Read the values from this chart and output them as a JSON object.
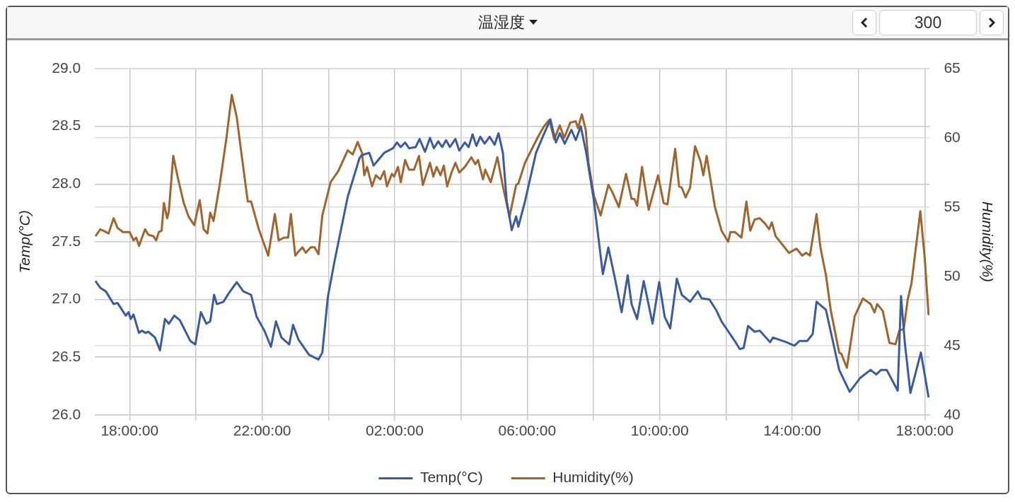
{
  "chart_data": {
    "type": "line",
    "title": "温湿度",
    "annotations": [
      "300"
    ],
    "ylabel": "Temp(°C)",
    "y2label": "Humidity(%)",
    "xlim": [
      "--01-01T16:57",
      "--01-02T18:09"
    ],
    "xticks": [
      {
        "value": "--01-01T18:00",
        "label": "18:00:00"
      },
      {
        "value": "--01-01T20:00",
        "label": null
      },
      {
        "value": "--01-01T22:00",
        "label": "22:00:00"
      },
      {
        "value": "--01-02T00:00",
        "label": null
      },
      {
        "value": "--01-02T02:00",
        "label": "02:00:00"
      },
      {
        "value": "--01-02T04:00",
        "label": null
      },
      {
        "value": "--01-02T06:00",
        "label": "06:00:00"
      },
      {
        "value": "--01-02T08:00",
        "label": null
      },
      {
        "value": "--01-02T10:00",
        "label": "10:00:00"
      },
      {
        "value": "--01-02T12:00",
        "label": null
      },
      {
        "value": "--01-02T14:00",
        "label": "14:00:00"
      },
      {
        "value": "--01-02T16:00",
        "label": null
      },
      {
        "value": "--01-02T18:00",
        "label": "18:00:00"
      }
    ],
    "ylim": [
      26,
      29
    ],
    "yticks": [
      {
        "value": 26,
        "label": "26.0"
      },
      {
        "value": 26.5,
        "label": "26.5"
      },
      {
        "value": 27,
        "label": "27.0"
      },
      {
        "value": 27.5,
        "label": "27.5"
      },
      {
        "value": 28,
        "label": "28.0"
      },
      {
        "value": 28.5,
        "label": "28.5"
      },
      {
        "value": 29,
        "label": "29.0"
      }
    ],
    "y2lim": [
      40,
      65
    ],
    "y2ticks": [
      40,
      45,
      50,
      55,
      60,
      65
    ],
    "grid": true,
    "legend": "bottom",
    "marker": "none",
    "line_style": "solid",
    "series": [
      {
        "name": "Temp(°C)",
        "color": "#3a5ba0",
        "x": [
          "--01-01T16:58",
          "--01-01T17:07",
          "--01-01T17:17",
          "--01-01T17:31",
          "--01-01T17:38",
          "--01-01T17:53",
          "--01-01T17:58",
          "--01-01T18:02",
          "--01-01T18:07",
          "--01-01T18:17",
          "--01-01T18:22",
          "--01-01T18:29",
          "--01-01T18:34",
          "--01-01T18:46",
          "--01-01T18:55",
          "--01-01T19:04",
          "--01-01T19:11",
          "--01-01T19:21",
          "--01-01T19:31",
          "--01-01T19:50",
          "--01-01T19:59",
          "--01-01T20:09",
          "--01-01T20:19",
          "--01-01T20:26",
          "--01-01T20:33",
          "--01-01T20:38",
          "--01-01T20:50",
          "--01-01T20:59",
          "--01-01T21:14",
          "--01-01T21:26",
          "--01-01T21:40",
          "--01-01T21:50",
          "--01-01T22:04",
          "--01-01T22:16",
          "--01-01T22:25",
          "--01-01T22:35",
          "--01-01T22:49",
          "--01-01T22:56",
          "--01-01T23:06",
          "--01-01T23:25",
          "--01-01T23:42",
          "--01-01T23:49",
          "--01-01T23:59",
          "--01-02T00:11",
          "--01-02T00:35",
          "--01-02T00:56",
          "--01-02T01:00",
          "--01-02T01:14",
          "--01-02T01:22",
          "--01-02T01:34",
          "--01-02T01:41",
          "--01-02T01:57",
          "--01-02T02:04",
          "--01-02T02:11",
          "--01-02T02:19",
          "--01-02T02:26",
          "--01-02T02:38",
          "--01-02T02:45",
          "--01-02T02:55",
          "--01-02T03:04",
          "--01-02T03:11",
          "--01-02T03:19",
          "--01-02T03:26",
          "--01-02T03:33",
          "--01-02T03:40",
          "--01-02T03:50",
          "--01-02T03:57",
          "--01-02T04:07",
          "--01-02T04:14",
          "--01-02T04:21",
          "--01-02T04:28",
          "--01-02T04:35",
          "--01-02T04:43",
          "--01-02T04:52",
          "--01-02T05:01",
          "--01-02T05:08",
          "--01-02T05:16",
          "--01-02T05:23",
          "--01-02T05:32",
          "--01-02T05:40",
          "--01-02T05:44",
          "--01-02T05:56",
          "--01-02T06:16",
          "--01-02T06:30",
          "--01-02T06:42",
          "--01-02T06:52",
          "--01-02T06:59",
          "--01-02T07:08",
          "--01-02T07:20",
          "--01-02T07:28",
          "--01-02T07:37",
          "--01-02T07:47",
          "--01-02T08:01",
          "--01-02T08:17",
          "--01-02T08:27",
          "--01-02T08:39",
          "--01-02T08:51",
          "--01-02T09:02",
          "--01-02T09:09",
          "--01-02T09:19",
          "--01-02T09:31",
          "--01-02T09:47",
          "--01-02T09:59",
          "--01-02T10:09",
          "--01-02T10:19",
          "--01-02T10:31",
          "--01-02T10:40",
          "--01-02T10:55",
          "--01-02T11:09",
          "--01-02T11:16",
          "--01-02T11:30",
          "--01-02T11:42",
          "--01-02T11:52",
          "--01-02T11:59",
          "--01-02T12:16",
          "--01-02T12:25",
          "--01-02T12:32",
          "--01-02T12:40",
          "--01-02T12:52",
          "--01-02T13:01",
          "--01-02T13:20",
          "--01-02T13:25",
          "--01-02T13:49",
          "--01-02T14:04",
          "--01-02T14:13",
          "--01-02T14:27",
          "--01-02T14:37",
          "--01-02T14:44",
          "--01-02T15:01",
          "--01-02T15:25",
          "--01-02T15:44",
          "--01-02T16:03",
          "--01-02T16:22",
          "--01-02T16:32",
          "--01-02T16:41",
          "--01-02T16:51",
          "--01-02T17:01",
          "--01-02T17:11",
          "--01-02T17:17",
          "--01-02T17:24",
          "--01-02T17:34",
          "--01-02T17:53",
          "--01-02T18:07"
        ],
        "values": [
          27.16,
          27.1,
          27.07,
          26.96,
          26.97,
          26.86,
          26.89,
          26.83,
          26.87,
          26.71,
          26.73,
          26.71,
          26.72,
          26.67,
          26.56,
          26.83,
          26.79,
          26.86,
          26.82,
          26.64,
          26.61,
          26.89,
          26.79,
          26.81,
          27.04,
          26.96,
          26.98,
          27.05,
          27.15,
          27.07,
          27.04,
          26.85,
          26.73,
          26.59,
          26.81,
          26.67,
          26.61,
          26.78,
          26.65,
          26.52,
          26.48,
          26.54,
          27.02,
          27.33,
          27.89,
          28.22,
          28.25,
          28.27,
          28.16,
          28.23,
          28.27,
          28.31,
          28.36,
          28.32,
          28.36,
          28.31,
          28.32,
          28.39,
          28.28,
          28.4,
          28.31,
          28.37,
          28.32,
          28.38,
          28.32,
          28.39,
          28.29,
          28.36,
          28.32,
          28.43,
          28.33,
          28.41,
          28.35,
          28.41,
          28.34,
          28.44,
          28.27,
          27.85,
          27.6,
          27.72,
          27.63,
          27.85,
          28.27,
          28.43,
          28.56,
          28.36,
          28.44,
          28.35,
          28.47,
          28.38,
          28.5,
          28.27,
          27.85,
          27.22,
          27.45,
          27.18,
          26.89,
          27.21,
          26.96,
          26.83,
          27.16,
          26.79,
          27.15,
          26.85,
          26.75,
          27.18,
          27.04,
          26.98,
          27.07,
          27.01,
          27.0,
          26.91,
          26.81,
          26.76,
          26.64,
          26.57,
          26.58,
          26.77,
          26.72,
          26.73,
          26.63,
          26.67,
          26.63,
          26.6,
          26.64,
          26.64,
          26.7,
          26.98,
          26.91,
          26.39,
          26.2,
          26.32,
          26.39,
          26.35,
          26.39,
          26.39,
          26.3,
          26.21,
          27.03,
          26.62,
          26.19,
          26.54,
          26.15
        ]
      },
      {
        "name": "Humidity(%)",
        "color": "#a0652e",
        "axis": "y2",
        "x": [
          "--01-01T16:58",
          "--01-01T17:07",
          "--01-01T17:17",
          "--01-01T17:22",
          "--01-01T17:31",
          "--01-01T17:38",
          "--01-01T17:48",
          "--01-01T18:00",
          "--01-01T18:07",
          "--01-01T18:12",
          "--01-01T18:17",
          "--01-01T18:28",
          "--01-01T18:34",
          "--01-01T18:43",
          "--01-01T18:48",
          "--01-01T18:53",
          "--01-01T18:58",
          "--01-01T19:02",
          "--01-01T19:08",
          "--01-01T19:11",
          "--01-01T19:19",
          "--01-01T19:28",
          "--01-01T19:38",
          "--01-01T19:47",
          "--01-01T19:57",
          "--01-01T20:07",
          "--01-01T20:14",
          "--01-01T20:21",
          "--01-01T20:26",
          "--01-01T20:32",
          "--01-01T20:43",
          "--01-01T20:55",
          "--01-01T21:05",
          "--01-01T21:14",
          "--01-01T21:23",
          "--01-01T21:34",
          "--01-01T21:40",
          "--01-01T21:54",
          "--01-01T22:11",
          "--01-01T22:23",
          "--01-01T22:30",
          "--01-01T22:40",
          "--01-01T22:47",
          "--01-01T22:52",
          "--01-01T23:00",
          "--01-01T23:06",
          "--01-01T23:13",
          "--01-01T23:19",
          "--01-01T23:28",
          "--01-01T23:35",
          "--01-01T23:42",
          "--01-01T23:49",
          "--01-02T00:04",
          "--01-02T00:18",
          "--01-02T00:35",
          "--01-02T00:44",
          "--01-02T00:53",
          "--01-02T01:01",
          "--01-02T01:05",
          "--01-02T01:10",
          "--01-02T01:19",
          "--01-02T01:26",
          "--01-02T01:34",
          "--01-02T01:41",
          "--01-02T01:46",
          "--01-02T01:55",
          "--01-02T01:59",
          "--01-02T02:06",
          "--01-02T02:11",
          "--01-02T02:19",
          "--01-02T02:26",
          "--01-02T02:35",
          "--01-02T02:44",
          "--01-02T02:51",
          "--01-02T03:04",
          "--01-02T03:10",
          "--01-02T03:16",
          "--01-02T03:23",
          "--01-02T03:29",
          "--01-02T03:35",
          "--01-02T03:43",
          "--01-02T03:50",
          "--01-02T03:57",
          "--01-02T04:07",
          "--01-02T04:19",
          "--01-02T04:26",
          "--01-02T04:31",
          "--01-02T04:40",
          "--01-02T04:44",
          "--01-02T04:54",
          "--01-02T05:06",
          "--01-02T05:16",
          "--01-02T05:28",
          "--01-02T05:40",
          "--01-02T05:44",
          "--01-02T05:56",
          "--01-02T06:11",
          "--01-02T06:20",
          "--01-02T06:30",
          "--01-02T06:40",
          "--01-02T06:49",
          "--01-02T06:59",
          "--01-02T07:07",
          "--01-02T07:18",
          "--01-02T07:28",
          "--01-02T07:32",
          "--01-02T07:39",
          "--01-02T07:46",
          "--01-02T07:51",
          "--01-02T08:01",
          "--01-02T08:13",
          "--01-02T08:27",
          "--01-02T08:34",
          "--01-02T08:46",
          "--01-02T08:59",
          "--01-02T09:09",
          "--01-02T09:14",
          "--01-02T09:19",
          "--01-02T09:28",
          "--01-02T09:40",
          "--01-02T09:57",
          "--01-02T10:07",
          "--01-02T10:14",
          "--01-02T10:28",
          "--01-02T10:35",
          "--01-02T10:40",
          "--01-02T10:47",
          "--01-02T10:55",
          "--01-02T11:04",
          "--01-02T11:14",
          "--01-02T11:19",
          "--01-02T11:25",
          "--01-02T11:40",
          "--01-02T11:52",
          "--01-02T12:04",
          "--01-02T12:08",
          "--01-02T12:16",
          "--01-02T12:28",
          "--01-02T12:37",
          "--01-02T12:44",
          "--01-02T12:52",
          "--01-02T13:01",
          "--01-02T13:11",
          "--01-02T13:18",
          "--01-02T13:23",
          "--01-02T13:30",
          "--01-02T13:44",
          "--01-02T13:54",
          "--01-02T14:08",
          "--01-02T14:18",
          "--01-02T14:25",
          "--01-02T14:32",
          "--01-02T14:44",
          "--01-02T14:51",
          "--01-02T15:01",
          "--01-02T15:10",
          "--01-02T15:25",
          "--01-02T15:29",
          "--01-02T15:39",
          "--01-02T15:53",
          "--01-02T16:08",
          "--01-02T16:22",
          "--01-02T16:29",
          "--01-02T16:34",
          "--01-02T16:44",
          "--01-02T16:56",
          "--01-02T17:07",
          "--01-02T17:14",
          "--01-02T17:22",
          "--01-02T17:29",
          "--01-02T17:36",
          "--01-02T17:52",
          "--01-02T18:00",
          "--01-02T18:07"
        ],
        "values": [
          52.9,
          53.4,
          53.2,
          53.1,
          54.2,
          53.5,
          53.2,
          53.2,
          52.6,
          52.8,
          52.2,
          53.4,
          53.0,
          52.9,
          52.6,
          53.2,
          53.3,
          55.3,
          54.2,
          54.7,
          58.7,
          57.0,
          55.3,
          54.3,
          53.7,
          55.5,
          53.4,
          53.1,
          54.6,
          54.0,
          56.6,
          59.9,
          63.1,
          61.5,
          58.7,
          55.4,
          55.4,
          53.4,
          51.5,
          54.5,
          52.6,
          52.8,
          52.8,
          54.5,
          51.5,
          51.8,
          52.1,
          51.7,
          52.1,
          52.1,
          51.6,
          54.4,
          56.8,
          57.6,
          59.1,
          58.8,
          59.7,
          58.9,
          57.3,
          57.9,
          56.5,
          57.3,
          57.0,
          57.6,
          56.5,
          57.4,
          57.2,
          57.9,
          56.8,
          58.4,
          57.7,
          57.7,
          58.7,
          56.6,
          58.2,
          57.2,
          57.9,
          57.3,
          58.0,
          56.5,
          57.5,
          58.2,
          57.5,
          57.9,
          58.6,
          58.1,
          58.4,
          57.0,
          57.7,
          56.8,
          58.6,
          56.5,
          54.3,
          56.6,
          56.7,
          58.2,
          59.4,
          60.1,
          60.8,
          61.3,
          59.9,
          60.9,
          60.0,
          61.1,
          61.2,
          60.7,
          61.7,
          60.6,
          58.2,
          55.8,
          54.4,
          56.6,
          56.1,
          55.0,
          57.4,
          55.6,
          55.6,
          55.1,
          57.9,
          54.8,
          57.3,
          55.3,
          55.2,
          59.2,
          56.5,
          56.4,
          55.7,
          56.4,
          59.4,
          58.3,
          57.3,
          58.7,
          55.0,
          53.3,
          52.5,
          53.2,
          53.2,
          52.8,
          55.4,
          53.3,
          54.1,
          54.2,
          53.8,
          53.4,
          53.9,
          52.9,
          52.2,
          51.7,
          52.0,
          51.5,
          51.7,
          51.5,
          54.5,
          52.1,
          50.1,
          47.5,
          44.5,
          44.4,
          43.4,
          47.1,
          48.4,
          48.0,
          47.4,
          48.0,
          47.5,
          45.2,
          45.1,
          46.1,
          46.2,
          48.3,
          49.5,
          54.7,
          51.3,
          47.2
        ]
      }
    ]
  }
}
